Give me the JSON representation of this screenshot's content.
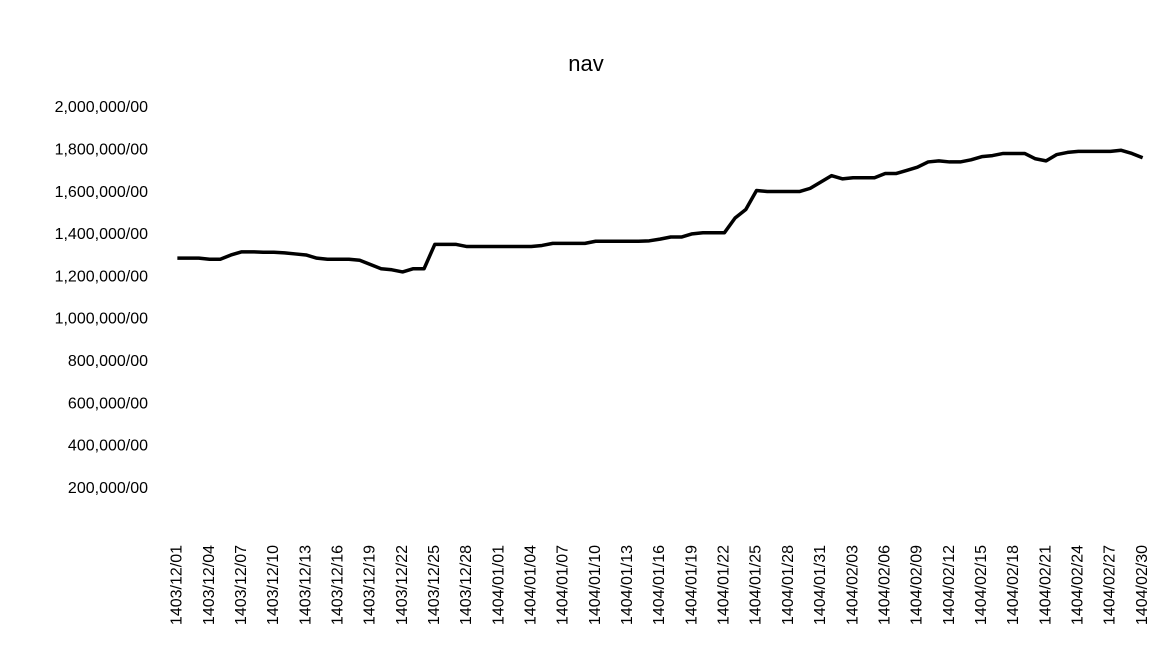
{
  "chart_data": {
    "type": "line",
    "title": "nav",
    "categories": [
      "1403/12/01",
      null,
      null,
      "1403/12/04",
      null,
      null,
      "1403/12/07",
      null,
      null,
      "1403/12/10",
      null,
      null,
      "1403/12/13",
      null,
      null,
      "1403/12/16",
      null,
      null,
      "1403/12/19",
      null,
      null,
      "1403/12/22",
      null,
      null,
      "1403/12/25",
      null,
      null,
      "1403/12/28",
      null,
      null,
      "1404/01/01",
      null,
      null,
      "1404/01/04",
      null,
      null,
      "1404/01/07",
      null,
      null,
      "1404/01/10",
      null,
      null,
      "1404/01/13",
      null,
      null,
      "1404/01/16",
      null,
      null,
      "1404/01/19",
      null,
      null,
      "1404/01/22",
      null,
      null,
      "1404/01/25",
      null,
      null,
      "1404/01/28",
      null,
      null,
      "1404/01/31",
      null,
      null,
      "1404/02/03",
      null,
      null,
      "1404/02/06",
      null,
      null,
      "1404/02/09",
      null,
      null,
      "1404/02/12",
      null,
      null,
      "1404/02/15",
      null,
      null,
      "1404/02/18",
      null,
      null,
      "1404/02/21",
      null,
      null,
      "1404/02/24",
      null,
      null,
      "1404/02/27",
      null,
      null,
      "1404/02/30"
    ],
    "values": [
      1290000,
      1290000,
      1290000,
      1285000,
      1285000,
      1305000,
      1320000,
      1320000,
      1318000,
      1318000,
      1315000,
      1310000,
      1305000,
      1290000,
      1285000,
      1285000,
      1285000,
      1280000,
      1260000,
      1240000,
      1235000,
      1225000,
      1240000,
      1240000,
      1355000,
      1355000,
      1355000,
      1345000,
      1345000,
      1345000,
      1345000,
      1345000,
      1345000,
      1345000,
      1350000,
      1360000,
      1360000,
      1360000,
      1360000,
      1370000,
      1370000,
      1370000,
      1370000,
      1370000,
      1372000,
      1380000,
      1390000,
      1390000,
      1405000,
      1410000,
      1410000,
      1410000,
      1480000,
      1520000,
      1610000,
      1605000,
      1605000,
      1605000,
      1605000,
      1620000,
      1650000,
      1680000,
      1665000,
      1670000,
      1670000,
      1670000,
      1690000,
      1690000,
      1705000,
      1720000,
      1745000,
      1750000,
      1745000,
      1745000,
      1755000,
      1770000,
      1775000,
      1785000,
      1785000,
      1785000,
      1760000,
      1750000,
      1780000,
      1790000,
      1795000,
      1795000,
      1795000,
      1795000,
      1800000,
      1785000,
      1765000
    ],
    "color": "#000000",
    "ylim": [
      0,
      2000000
    ],
    "yticks": [
      {
        "value": 200000,
        "label": "200,000/00"
      },
      {
        "value": 400000,
        "label": "400,000/00"
      },
      {
        "value": 600000,
        "label": "600,000/00"
      },
      {
        "value": 800000,
        "label": "800,000/00"
      },
      {
        "value": 1000000,
        "label": "1,000,000/00"
      },
      {
        "value": 1200000,
        "label": "1,200,000/00"
      },
      {
        "value": 1400000,
        "label": "1,400,000/00"
      },
      {
        "value": 1600000,
        "label": "1,600,000/00"
      },
      {
        "value": 1800000,
        "label": "1,800,000/00"
      },
      {
        "value": 2000000,
        "label": "2,000,000/00"
      }
    ],
    "grid": false
  }
}
